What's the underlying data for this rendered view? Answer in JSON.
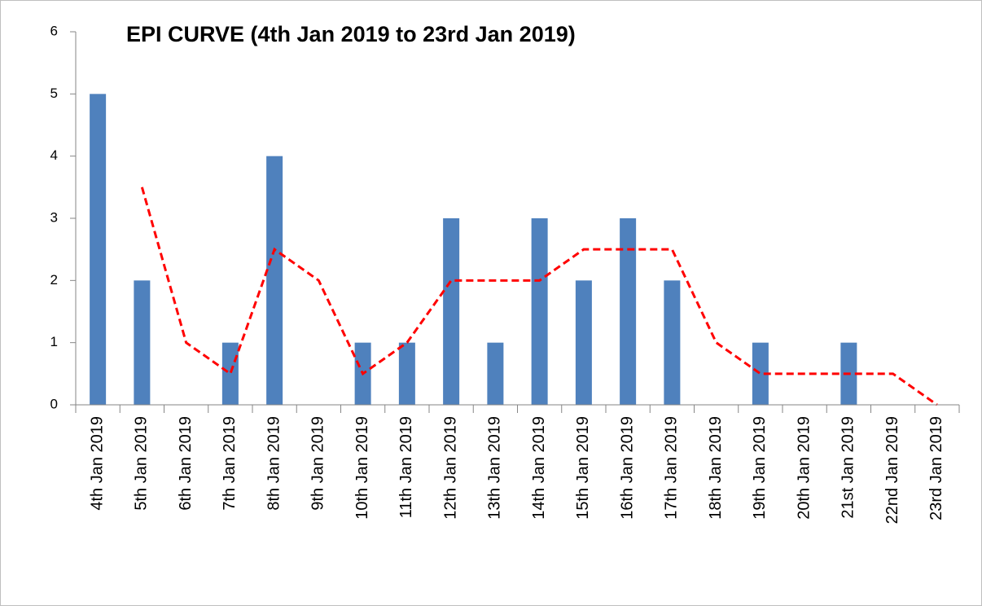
{
  "chart_data": {
    "type": "bar",
    "title": "EPI CURVE  (4th Jan 2019 to 23rd Jan 2019)",
    "categories": [
      "4th Jan 2019",
      "5th Jan 2019",
      "6th Jan 2019",
      "7th Jan 2019",
      "8th Jan 2019",
      "9th Jan 2019",
      "10th Jan 2019",
      "11th Jan 2019",
      "12th Jan 2019",
      "13th Jan 2019",
      "14th Jan 2019",
      "15th Jan 2019",
      "16th Jan 2019",
      "17th Jan 2019",
      "18th Jan 2019",
      "19th Jan 2019",
      "20th Jan 2019",
      "21st Jan 2019",
      "22nd Jan 2019",
      "23rd Jan 2019"
    ],
    "series": [
      {
        "type": "bar",
        "color": "#4f81bd",
        "values": [
          5,
          2,
          0,
          1,
          4,
          0,
          1,
          1,
          3,
          1,
          3,
          2,
          3,
          2,
          0,
          1,
          0,
          1,
          0,
          0
        ]
      },
      {
        "type": "line",
        "color": "#ff0000",
        "dashed": true,
        "values": [
          null,
          3.5,
          1,
          0.5,
          2.5,
          2,
          0.5,
          1,
          2,
          2,
          2,
          2.5,
          2.5,
          2.5,
          1,
          0.5,
          0.5,
          0.5,
          0.5,
          0
        ]
      }
    ],
    "ylim": [
      0,
      6
    ],
    "yticks": [
      0,
      1,
      2,
      3,
      4,
      5,
      6
    ],
    "grid": false
  }
}
